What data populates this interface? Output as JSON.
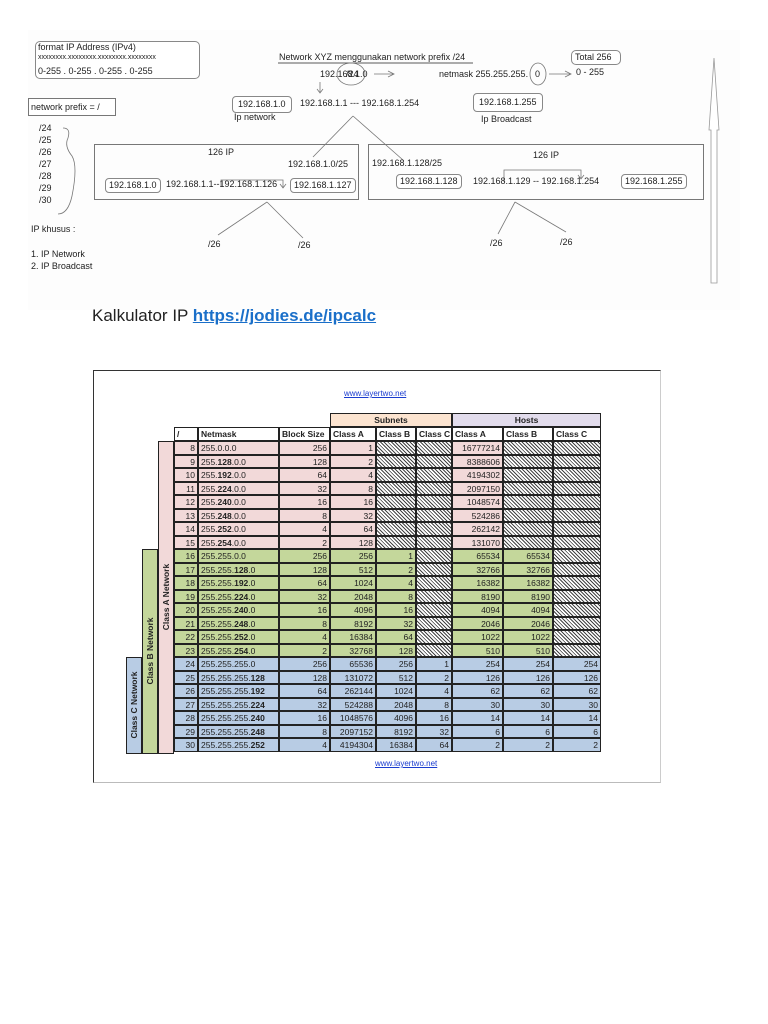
{
  "diagram": {
    "format_box": {
      "title": "format IP Address (IPv4)",
      "bits": "xxxxxxxx.xxxxxxxx.xxxxxxxx.xxxxxxxx",
      "ranges": "0-255  .  0-255    .    0-255    . 0-255"
    },
    "prefix_box": {
      "label": "network prefix = /"
    },
    "prefix_list": [
      "/24",
      "/25",
      "/26",
      "/27",
      "/28",
      "/29",
      "/30"
    ],
    "ip_khusus": {
      "title": "IP khusus :",
      "items": [
        "1. IP Network",
        "2. IP Broadcast"
      ]
    },
    "heading": "Network XYZ menggunakan network prefix /24",
    "network_addr": "192.168.1.0",
    "network_prefix": "/24",
    "netmask": "netmask 255.255.255.",
    "netmask_last": "0",
    "total": "Total 256",
    "range": "0 - 255",
    "ip_network_value": "192.168.1.0",
    "ip_network_label": "Ip network",
    "host_range": "192.168.1.1 --- 192.168.1.254",
    "ip_broadcast_value": "192.168.1.255",
    "ip_broadcast_label": "Ip Broadcast",
    "left_subnet": {
      "count": "126 IP",
      "cidr": "192.168.1.0/25",
      "network": "192.168.1.0",
      "hosts": "192.168.1.1--192.168.1.126",
      "broadcast": "192.168.1.127",
      "children": [
        "/26",
        "/26"
      ]
    },
    "right_subnet": {
      "count": "126 IP",
      "cidr": "192.168.1.128/25",
      "network": "192.168.1.128",
      "hosts": "192.168.1.129 -- 192.168.1.254",
      "broadcast": "192.168.1.255",
      "children": [
        "/26",
        "/26"
      ]
    }
  },
  "caption": {
    "label": "Kalkulator IP ",
    "link": "https://jodies.de/ipcalc"
  },
  "table": {
    "site_top": "www.layertwo.net",
    "site_bottom": "www.layertwo.net",
    "group_headers": {
      "subnets": "Subnets",
      "hosts": "Hosts"
    },
    "columns": [
      "/",
      "Netmask",
      "Block Size",
      "Class A",
      "Class B",
      "Class C",
      "Class A",
      "Class B",
      "Class C"
    ],
    "side_labels": {
      "a": "Class A Network",
      "b": "Class B Network",
      "c": "Class C Network"
    },
    "rows": [
      {
        "p": "8",
        "nm": "255.0.0.0",
        "bs": "256",
        "sa": "1",
        "sb": "",
        "sc": "",
        "ha": "16777214",
        "hb": "",
        "hc": ""
      },
      {
        "p": "9",
        "nm": "255.128.0.0",
        "bs": "128",
        "sa": "2",
        "sb": "",
        "sc": "",
        "ha": "8388606",
        "hb": "",
        "hc": ""
      },
      {
        "p": "10",
        "nm": "255.192.0.0",
        "bs": "64",
        "sa": "4",
        "sb": "",
        "sc": "",
        "ha": "4194302",
        "hb": "",
        "hc": ""
      },
      {
        "p": "11",
        "nm": "255.224.0.0",
        "bs": "32",
        "sa": "8",
        "sb": "",
        "sc": "",
        "ha": "2097150",
        "hb": "",
        "hc": ""
      },
      {
        "p": "12",
        "nm": "255.240.0.0",
        "bs": "16",
        "sa": "16",
        "sb": "",
        "sc": "",
        "ha": "1048574",
        "hb": "",
        "hc": ""
      },
      {
        "p": "13",
        "nm": "255.248.0.0",
        "bs": "8",
        "sa": "32",
        "sb": "",
        "sc": "",
        "ha": "524286",
        "hb": "",
        "hc": ""
      },
      {
        "p": "14",
        "nm": "255.252.0.0",
        "bs": "4",
        "sa": "64",
        "sb": "",
        "sc": "",
        "ha": "262142",
        "hb": "",
        "hc": ""
      },
      {
        "p": "15",
        "nm": "255.254.0.0",
        "bs": "2",
        "sa": "128",
        "sb": "",
        "sc": "",
        "ha": "131070",
        "hb": "",
        "hc": ""
      },
      {
        "p": "16",
        "nm": "255.255.0.0",
        "bs": "256",
        "sa": "256",
        "sb": "1",
        "sc": "",
        "ha": "65534",
        "hb": "65534",
        "hc": ""
      },
      {
        "p": "17",
        "nm": "255.255.128.0",
        "bs": "128",
        "sa": "512",
        "sb": "2",
        "sc": "",
        "ha": "32766",
        "hb": "32766",
        "hc": ""
      },
      {
        "p": "18",
        "nm": "255.255.192.0",
        "bs": "64",
        "sa": "1024",
        "sb": "4",
        "sc": "",
        "ha": "16382",
        "hb": "16382",
        "hc": ""
      },
      {
        "p": "19",
        "nm": "255.255.224.0",
        "bs": "32",
        "sa": "2048",
        "sb": "8",
        "sc": "",
        "ha": "8190",
        "hb": "8190",
        "hc": ""
      },
      {
        "p": "20",
        "nm": "255.255.240.0",
        "bs": "16",
        "sa": "4096",
        "sb": "16",
        "sc": "",
        "ha": "4094",
        "hb": "4094",
        "hc": ""
      },
      {
        "p": "21",
        "nm": "255.255.248.0",
        "bs": "8",
        "sa": "8192",
        "sb": "32",
        "sc": "",
        "ha": "2046",
        "hb": "2046",
        "hc": ""
      },
      {
        "p": "22",
        "nm": "255.255.252.0",
        "bs": "4",
        "sa": "16384",
        "sb": "64",
        "sc": "",
        "ha": "1022",
        "hb": "1022",
        "hc": ""
      },
      {
        "p": "23",
        "nm": "255.255.254.0",
        "bs": "2",
        "sa": "32768",
        "sb": "128",
        "sc": "",
        "ha": "510",
        "hb": "510",
        "hc": ""
      },
      {
        "p": "24",
        "nm": "255.255.255.0",
        "bs": "256",
        "sa": "65536",
        "sb": "256",
        "sc": "1",
        "ha": "254",
        "hb": "254",
        "hc": "254"
      },
      {
        "p": "25",
        "nm": "255.255.255.128",
        "bs": "128",
        "sa": "131072",
        "sb": "512",
        "sc": "2",
        "ha": "126",
        "hb": "126",
        "hc": "126"
      },
      {
        "p": "26",
        "nm": "255.255.255.192",
        "bs": "64",
        "sa": "262144",
        "sb": "1024",
        "sc": "4",
        "ha": "62",
        "hb": "62",
        "hc": "62"
      },
      {
        "p": "27",
        "nm": "255.255.255.224",
        "bs": "32",
        "sa": "524288",
        "sb": "2048",
        "sc": "8",
        "ha": "30",
        "hb": "30",
        "hc": "30"
      },
      {
        "p": "28",
        "nm": "255.255.255.240",
        "bs": "16",
        "sa": "1048576",
        "sb": "4096",
        "sc": "16",
        "ha": "14",
        "hb": "14",
        "hc": "14"
      },
      {
        "p": "29",
        "nm": "255.255.255.248",
        "bs": "8",
        "sa": "2097152",
        "sb": "8192",
        "sc": "32",
        "ha": "6",
        "hb": "6",
        "hc": "6"
      },
      {
        "p": "30",
        "nm": "255.255.255.252",
        "bs": "4",
        "sa": "4194304",
        "sb": "16384",
        "sc": "64",
        "ha": "2",
        "hb": "2",
        "hc": "2"
      }
    ]
  },
  "colors": {
    "class_a": "#f2d9d9",
    "class_b": "#c4d79b",
    "class_c": "#b8cce4",
    "subnets_header": "#fce4d0",
    "hosts_header": "#e2dcec",
    "link": "#1a6fc9"
  }
}
